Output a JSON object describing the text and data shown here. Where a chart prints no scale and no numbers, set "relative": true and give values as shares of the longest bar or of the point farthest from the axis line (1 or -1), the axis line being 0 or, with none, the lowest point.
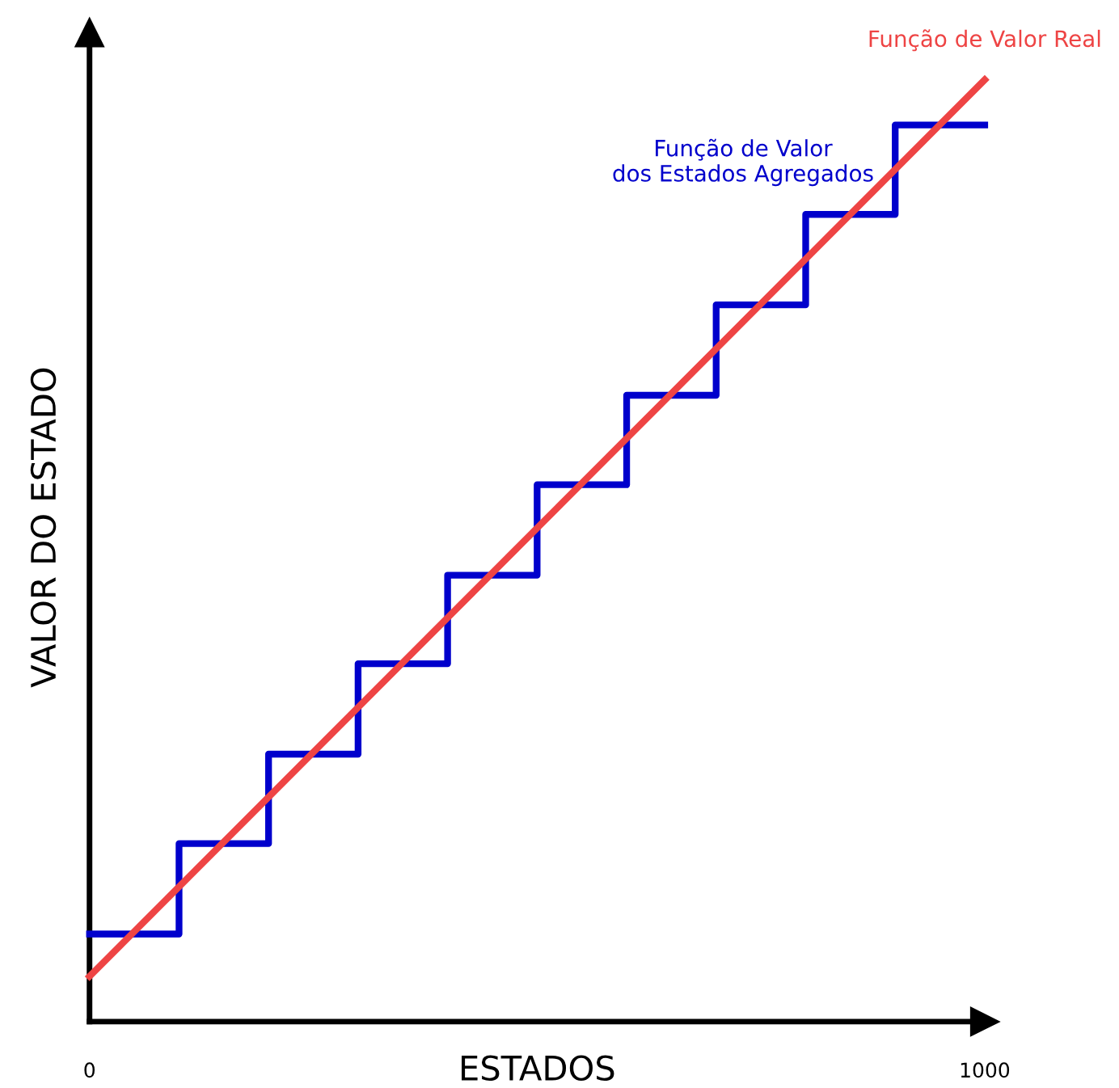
{
  "chart_data": {
    "type": "line",
    "relative": true,
    "xlabel": "ESTADOS",
    "ylabel": "VALOR DO ESTADO",
    "xlim": [
      0,
      1000
    ],
    "xticks": [
      0,
      1000
    ],
    "legend": false,
    "grid": false,
    "marker": "none",
    "line_style": "solid",
    "series": [
      {
        "name": "Função de Valor Real",
        "color": "#ee4444",
        "x": [
          0,
          1000
        ],
        "values": [
          0.048,
          1
        ]
      },
      {
        "name": "Função de Valor\ndos Estados Agregados",
        "color": "#0000cc",
        "type": "step",
        "x": [
          0,
          100,
          200,
          300,
          400,
          500,
          600,
          700,
          800,
          900,
          1000
        ],
        "values": [
          0.093,
          0.189,
          0.284,
          0.38,
          0.474,
          0.57,
          0.665,
          0.761,
          0.857,
          0.952,
          0.952
        ]
      }
    ]
  }
}
